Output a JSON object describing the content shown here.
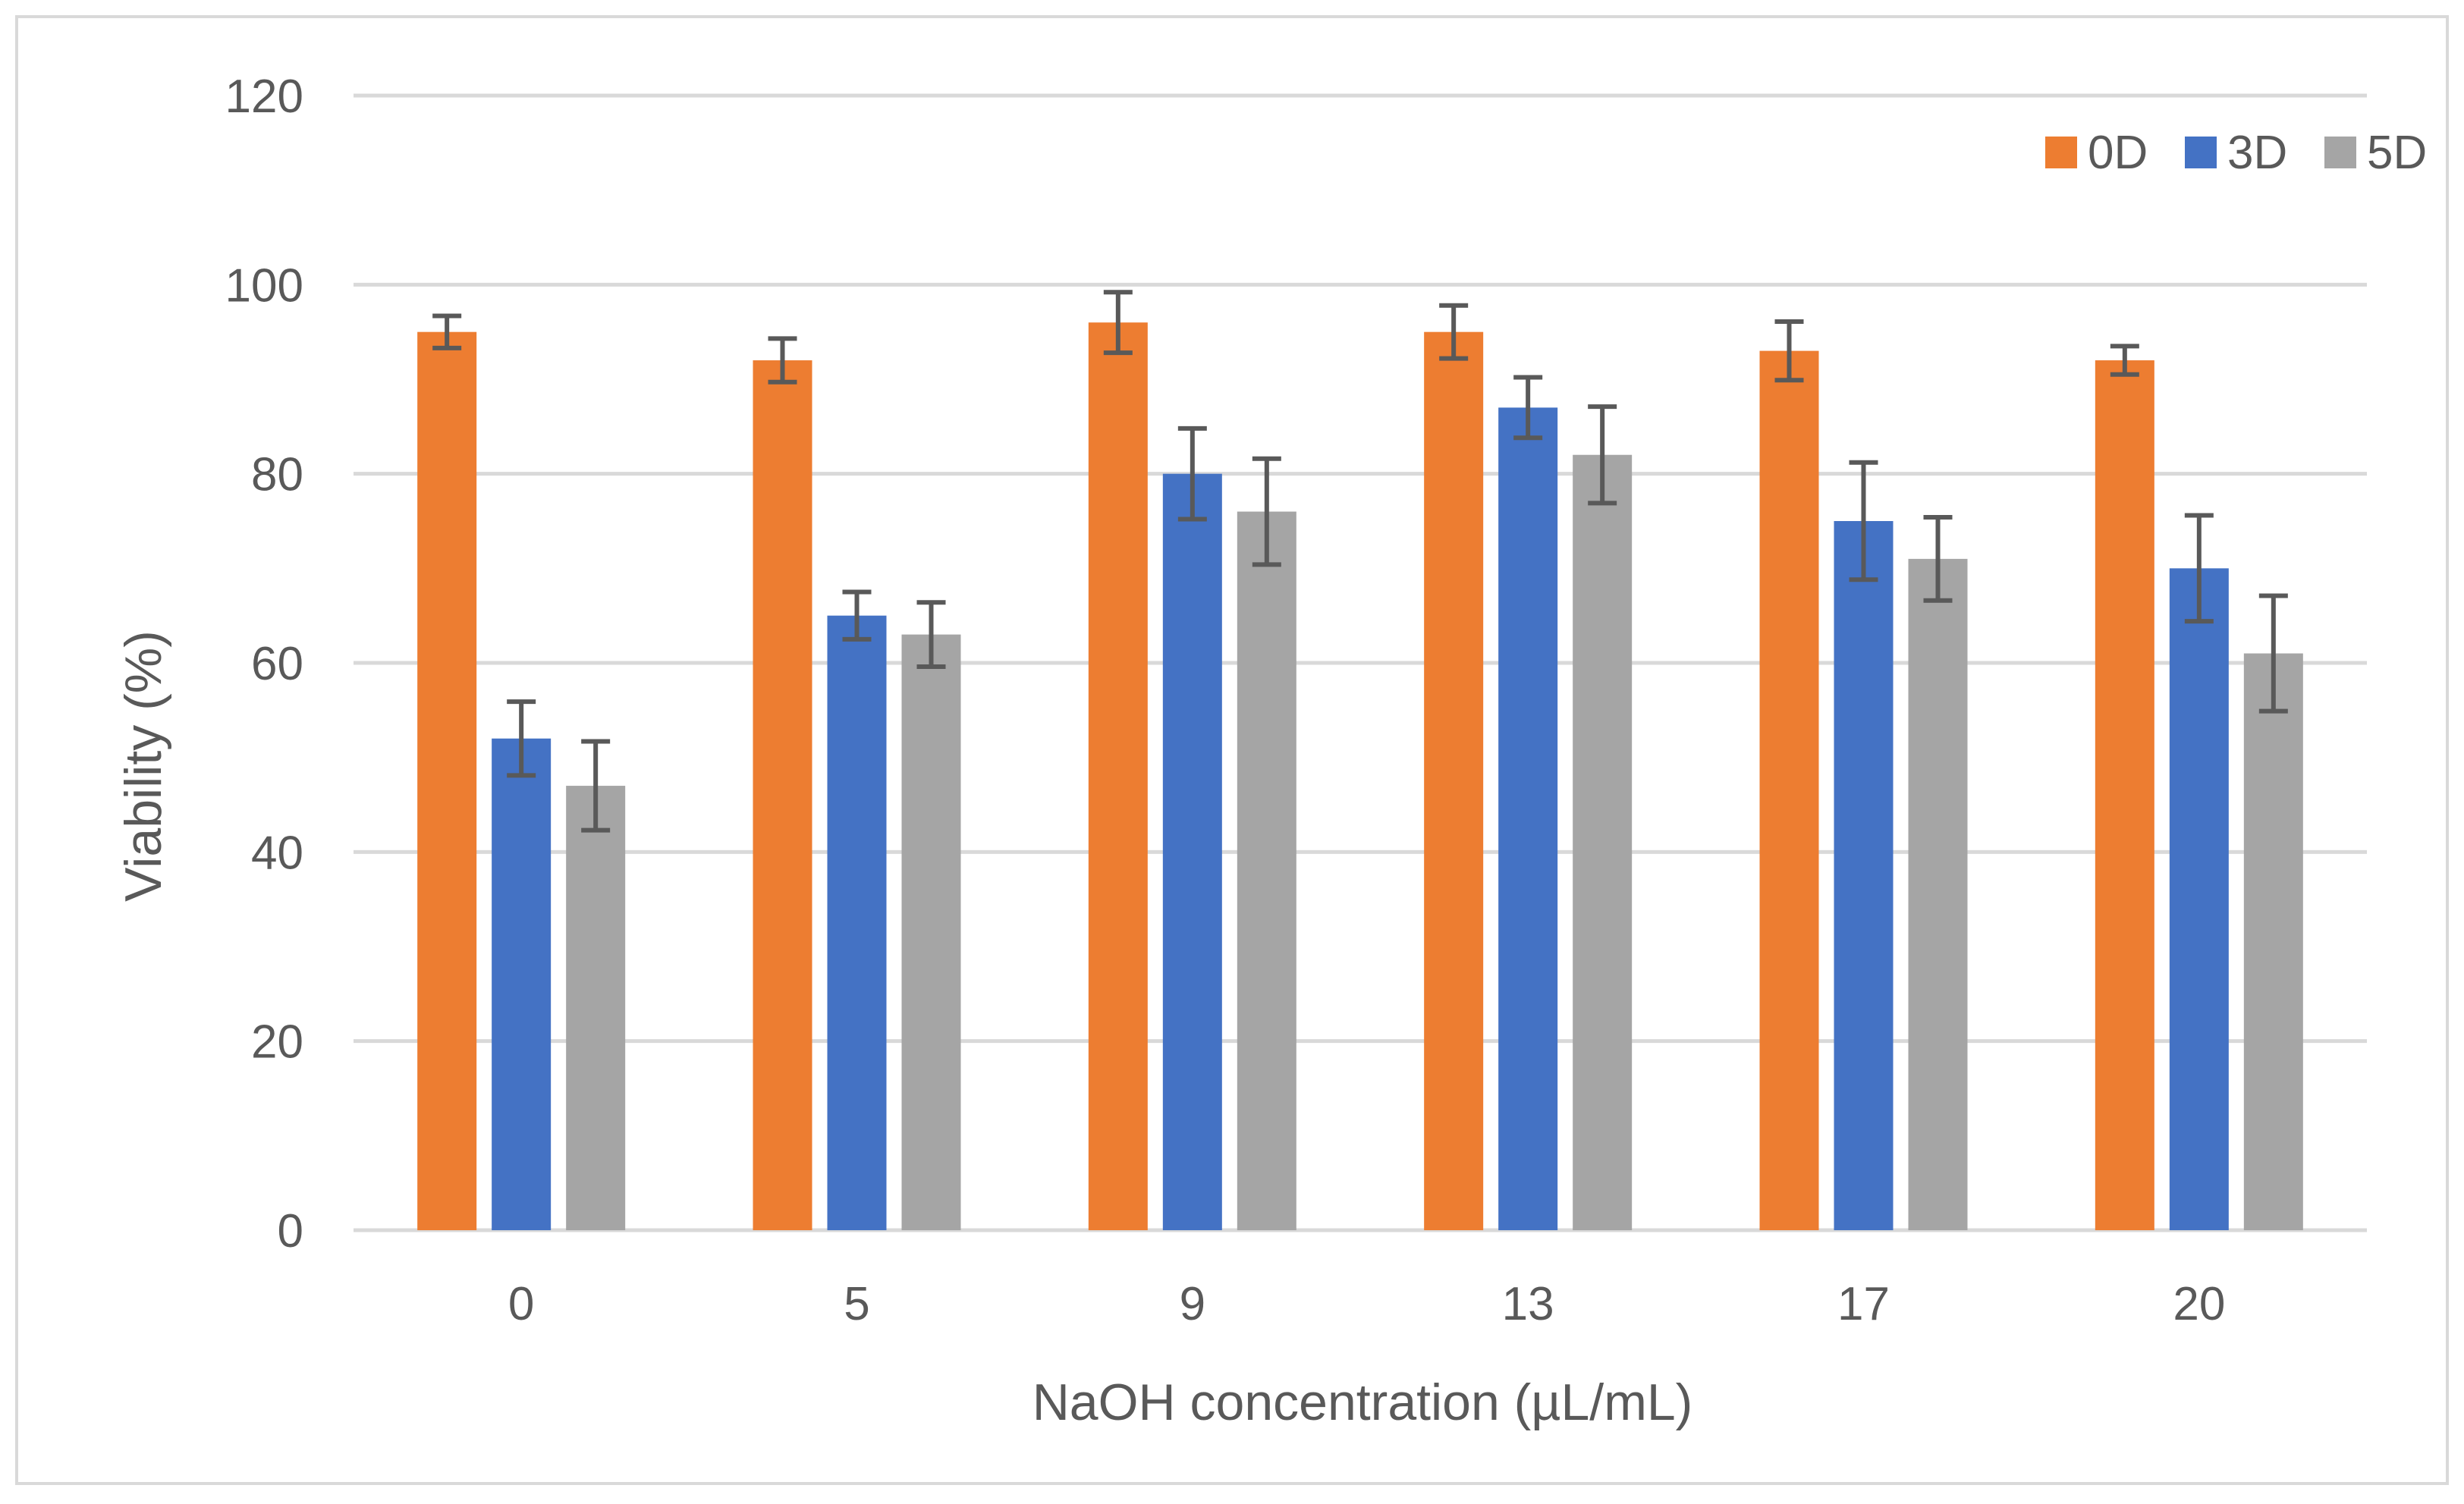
{
  "chart_data": {
    "type": "bar",
    "title": "",
    "xlabel": "NaOH concentration (µL/mL)",
    "ylabel": "Viability (%)",
    "ylim": [
      0,
      120
    ],
    "yticks": [
      0,
      20,
      40,
      60,
      80,
      100,
      120
    ],
    "categories": [
      "0",
      "5",
      "9",
      "13",
      "17",
      "20"
    ],
    "grid": true,
    "legend_position": "top-right",
    "series": [
      {
        "name": "0D",
        "color": "#ED7D31",
        "values": [
          95,
          92,
          96,
          95,
          93,
          92
        ],
        "errors": [
          1.7,
          2.3,
          3.2,
          2.8,
          3.1,
          1.5
        ]
      },
      {
        "name": "3D",
        "color": "#4472C4",
        "values": [
          52,
          65,
          80,
          87,
          75,
          70
        ],
        "errors": [
          3.9,
          2.5,
          4.8,
          3.2,
          6.2,
          5.6
        ]
      },
      {
        "name": "5D",
        "color": "#A5A5A5",
        "values": [
          47,
          63,
          76,
          82,
          71,
          61
        ],
        "errors": [
          4.7,
          3.4,
          5.6,
          5.1,
          4.4,
          6.1
        ]
      }
    ],
    "error_bar_color": "#595959",
    "gridline_color": "#D9D9D9",
    "border_color": "#D9D9D9"
  }
}
